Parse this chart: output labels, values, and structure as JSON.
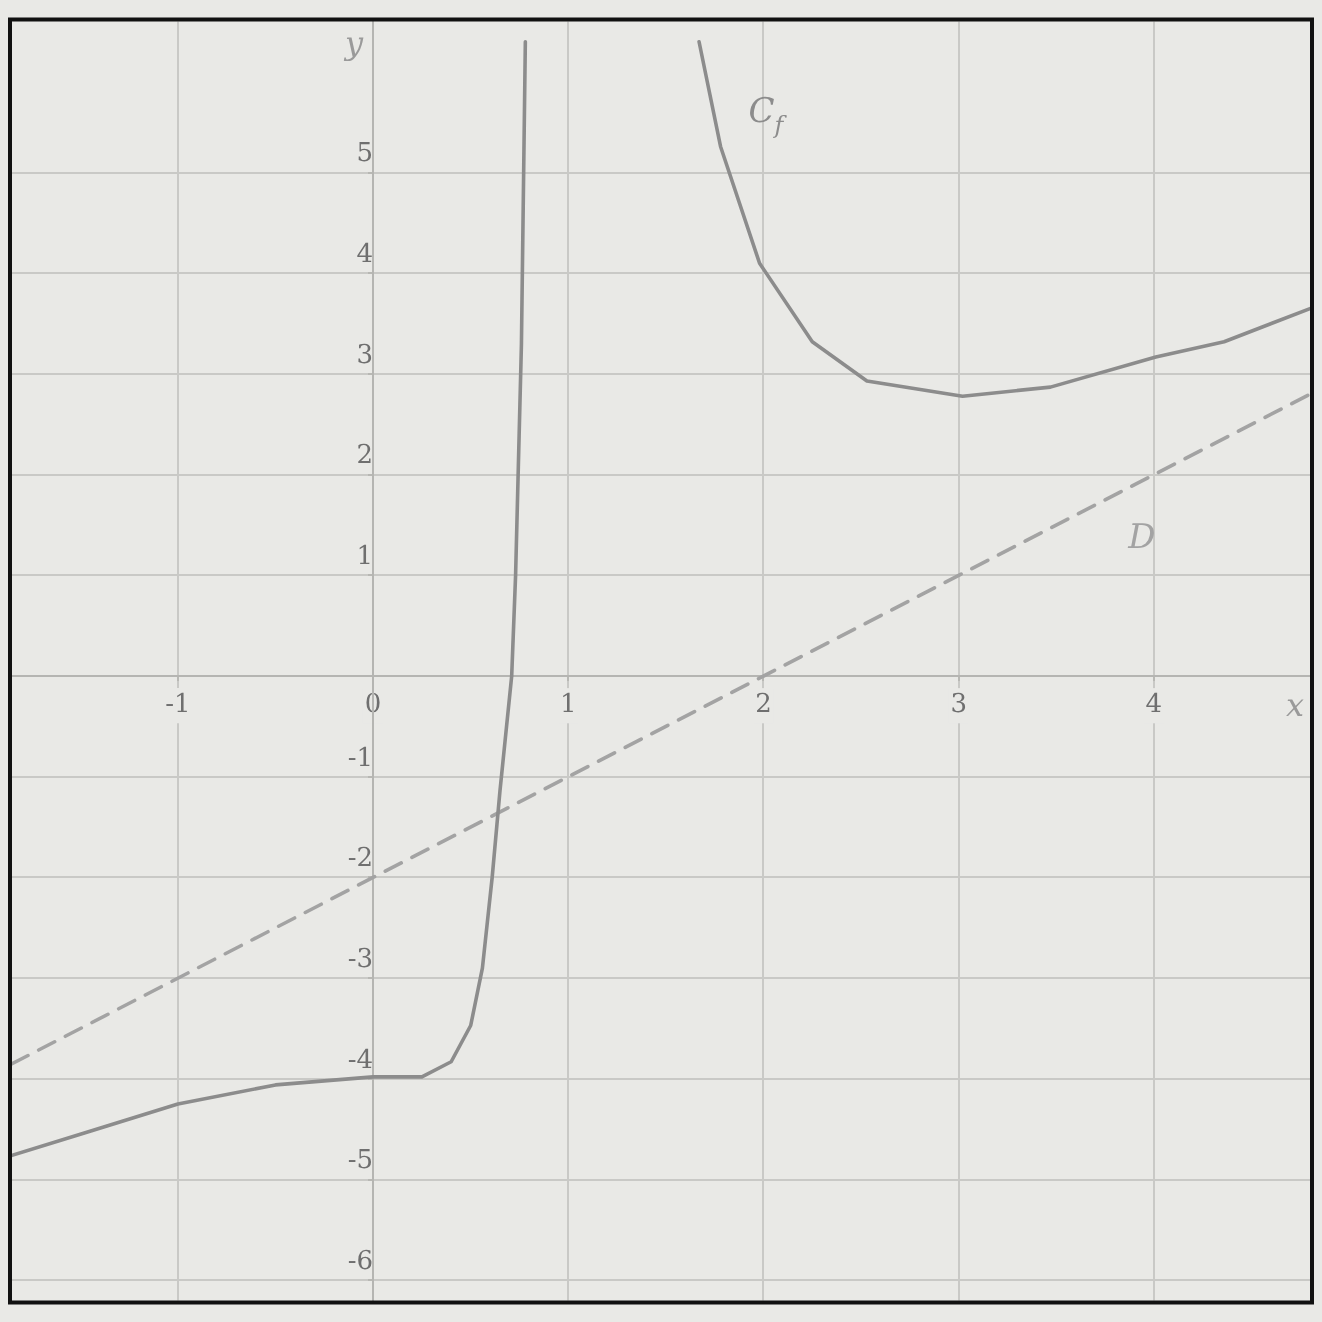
{
  "chart_data": {
    "type": "line",
    "xlabel": "x",
    "ylabel": "y",
    "xlim": [
      -1.85,
      4.8
    ],
    "ylim": [
      -6.2,
      6.5
    ],
    "xticks": [
      -1,
      0,
      1,
      2,
      3,
      4
    ],
    "yticks": [
      -6,
      -5,
      -4,
      -3,
      -2,
      -1,
      {
        "value": 0,
        "label": null
      },
      1,
      2,
      3,
      4,
      5
    ],
    "grid": true,
    "marker": "none",
    "series": [
      {
        "name": "C$_{f}$",
        "color": "#8c8c8c",
        "line_style": "solid",
        "x": [
          -1.85,
          -1.5,
          -1,
          -0.5,
          0,
          0.25,
          0.4,
          0.5,
          0.56,
          0.61,
          0.65,
          0.71,
          0.73,
          0.76,
          0.78,
          1.2,
          1.67,
          1.78,
          1.98,
          2.25,
          2.53,
          3.02,
          3.47,
          4.01,
          4.36,
          4.8
        ],
        "values": [
          -4.76,
          -4.55,
          -4.25,
          -4.06,
          -3.98,
          -3.98,
          -3.83,
          -3.47,
          -2.9,
          -2.0,
          -1.14,
          0,
          1.0,
          3.3,
          6.3,
          null,
          6.3,
          5.26,
          4.1,
          3.32,
          2.93,
          2.78,
          2.87,
          3.17,
          3.32,
          3.65
        ]
      },
      {
        "name": "D",
        "color": "#a3a3a3",
        "line_style": "dashed",
        "x": [
          -1.85,
          4.8
        ],
        "values": [
          -3.85,
          2.8
        ]
      }
    ]
  }
}
